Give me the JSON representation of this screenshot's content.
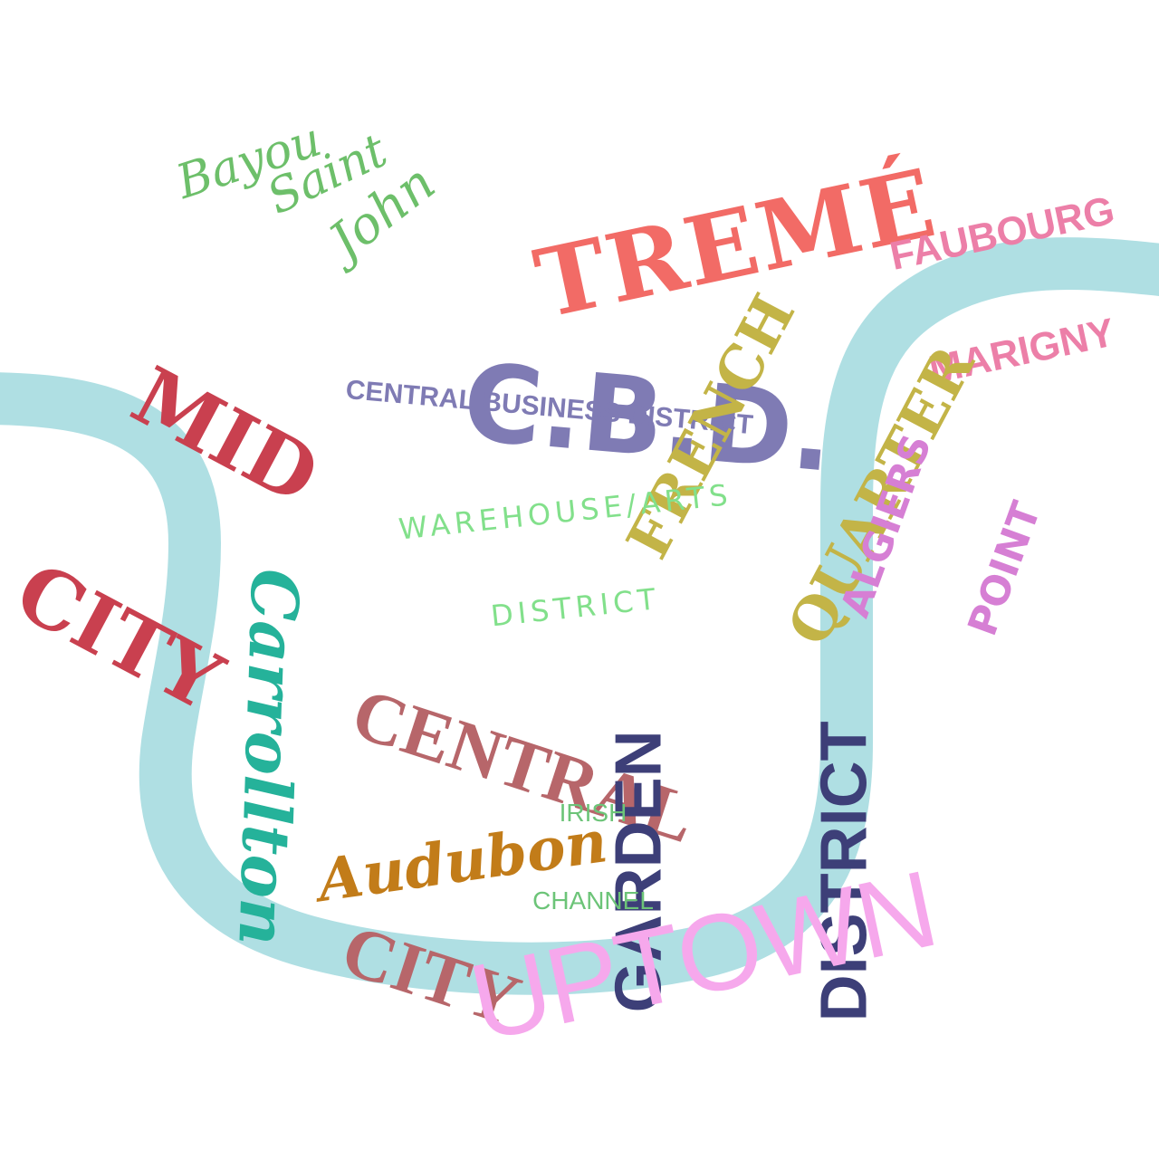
{
  "colors": {
    "river": "#afdfe3",
    "background": "#ffffff"
  },
  "neighborhoods": {
    "bayou_saint_john": {
      "line1": "Bayou",
      "line2": "Saint",
      "line3": "John",
      "color": "#6dbf6a"
    },
    "treme": {
      "text": "TREMÉ",
      "color": "#f26b66"
    },
    "faubourg_marigny": {
      "line1": "FAUBOURG",
      "line2": "MARIGNY",
      "color": "#ec7fa8"
    },
    "mid_city": {
      "line1": "MID",
      "line2": "CITY",
      "color": "#c9404f"
    },
    "cbd": {
      "text": "C.B.D.",
      "subtitle": "CENTRAL BUSINESS DISTRICT",
      "color": "#7f7bb4"
    },
    "french_quarter": {
      "line1": "FRENCH",
      "line2": "QUARTER",
      "color": "#c3b447"
    },
    "algiers_point": {
      "line1": "ALGIERS",
      "line2": "POINT",
      "color": "#d67fd4"
    },
    "carrollton": {
      "text": "Carrollton",
      "color": "#25b29a"
    },
    "warehouse_arts": {
      "line1": "WAREHOUSE/ARTS",
      "line2": "DISTRICT",
      "color": "#82e08b"
    },
    "garden_district": {
      "line1": "GARDEN",
      "line2": "DISTRICT",
      "color": "#3d3f78"
    },
    "central_city": {
      "line1": "CENTRAL",
      "line2": "CITY",
      "color": "#b7666a"
    },
    "irish_channel": {
      "line1": "IRISH",
      "line2": "CHANNEL",
      "color": "#6cc478"
    },
    "audubon": {
      "text": "Audubon",
      "color": "#c27c19"
    },
    "uptown": {
      "text": "UPTOWN",
      "color": "#f6a8ec"
    }
  }
}
